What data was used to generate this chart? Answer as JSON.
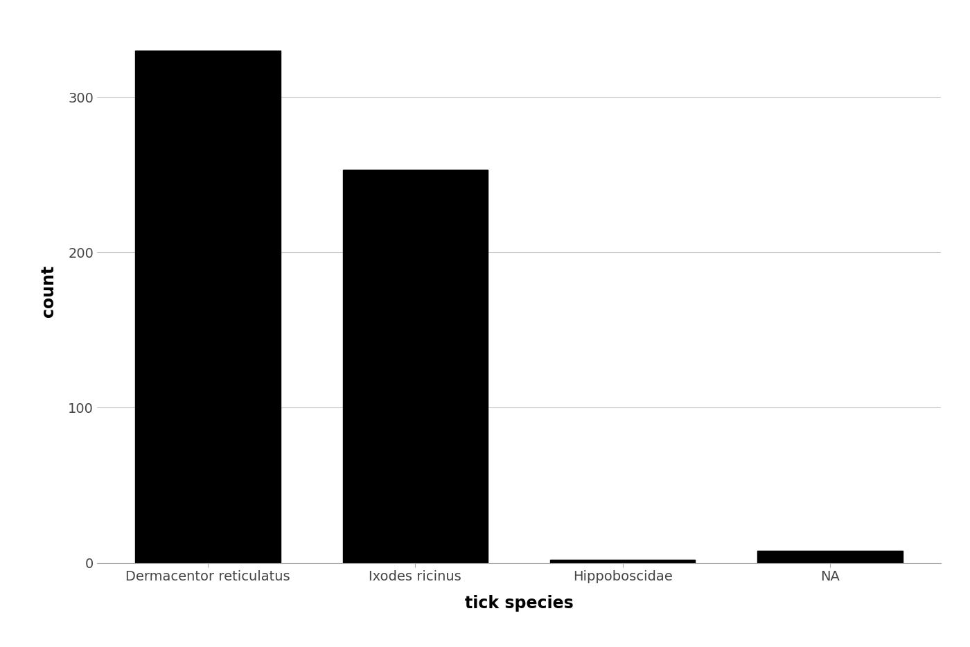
{
  "categories": [
    "Dermacentor reticulatus",
    "Ixodes ricinus",
    "Hippoboscidae",
    "NA"
  ],
  "values": [
    330,
    253,
    2,
    8
  ],
  "bar_color": "#000000",
  "bar_width": 0.7,
  "xlabel": "tick species",
  "ylabel": "count",
  "ylim": [
    0,
    350
  ],
  "yticks": [
    0,
    100,
    200,
    300
  ],
  "background_color": "#ffffff",
  "grid_color": "#cccccc",
  "xlabel_fontsize": 17,
  "ylabel_fontsize": 17,
  "tick_fontsize": 14,
  "label_color": "#444444"
}
